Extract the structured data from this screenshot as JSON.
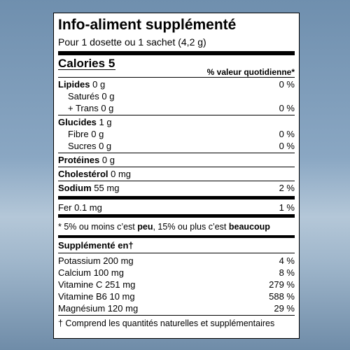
{
  "title": "Info-aliment supplémenté",
  "serving": "Pour 1 dosette ou 1 sachet (4,2 g)",
  "calories": {
    "label": "Calories",
    "value": "5"
  },
  "dv_header": "% valeur quotidienne*",
  "nutrients": [
    {
      "name": "Lipides",
      "amount": "0 g",
      "dv": "0 %",
      "sub": [
        {
          "text": "Saturés 0 g"
        },
        {
          "text": "+ Trans 0 g",
          "dv": "0 %"
        }
      ]
    },
    {
      "name": "Glucides",
      "amount": "1 g",
      "sub": [
        {
          "text": "Fibre 0 g",
          "dv": "0 %"
        },
        {
          "text": "Sucres 0 g",
          "dv": "0 %"
        }
      ]
    },
    {
      "name": "Protéines",
      "amount": "0 g"
    },
    {
      "name": "Cholestérol",
      "amount": "0 mg"
    },
    {
      "name": "Sodium",
      "amount": "55 mg",
      "dv": "2 %"
    }
  ],
  "iron": {
    "text": "Fer 0.1 mg",
    "dv": "1 %"
  },
  "footnote": [
    "* 5% ou moins c’est ",
    "peu",
    ", 15% ou plus c’est ",
    "beaucoup"
  ],
  "supplemented": {
    "title": "Supplémenté en†",
    "rows": [
      {
        "text": "Potassium 200 mg",
        "dv": "4 %"
      },
      {
        "text": "Calcium 100 mg",
        "dv": "8 %"
      },
      {
        "text": "Vitamine C 251 mg",
        "dv": "279 %"
      },
      {
        "text": "Vitamine B6 10 mg",
        "dv": "588 %"
      },
      {
        "text": "Magnésium 120 mg",
        "dv": "29 %"
      }
    ]
  },
  "source_note": "† Comprend les quantités naturelles et supplémentaires"
}
